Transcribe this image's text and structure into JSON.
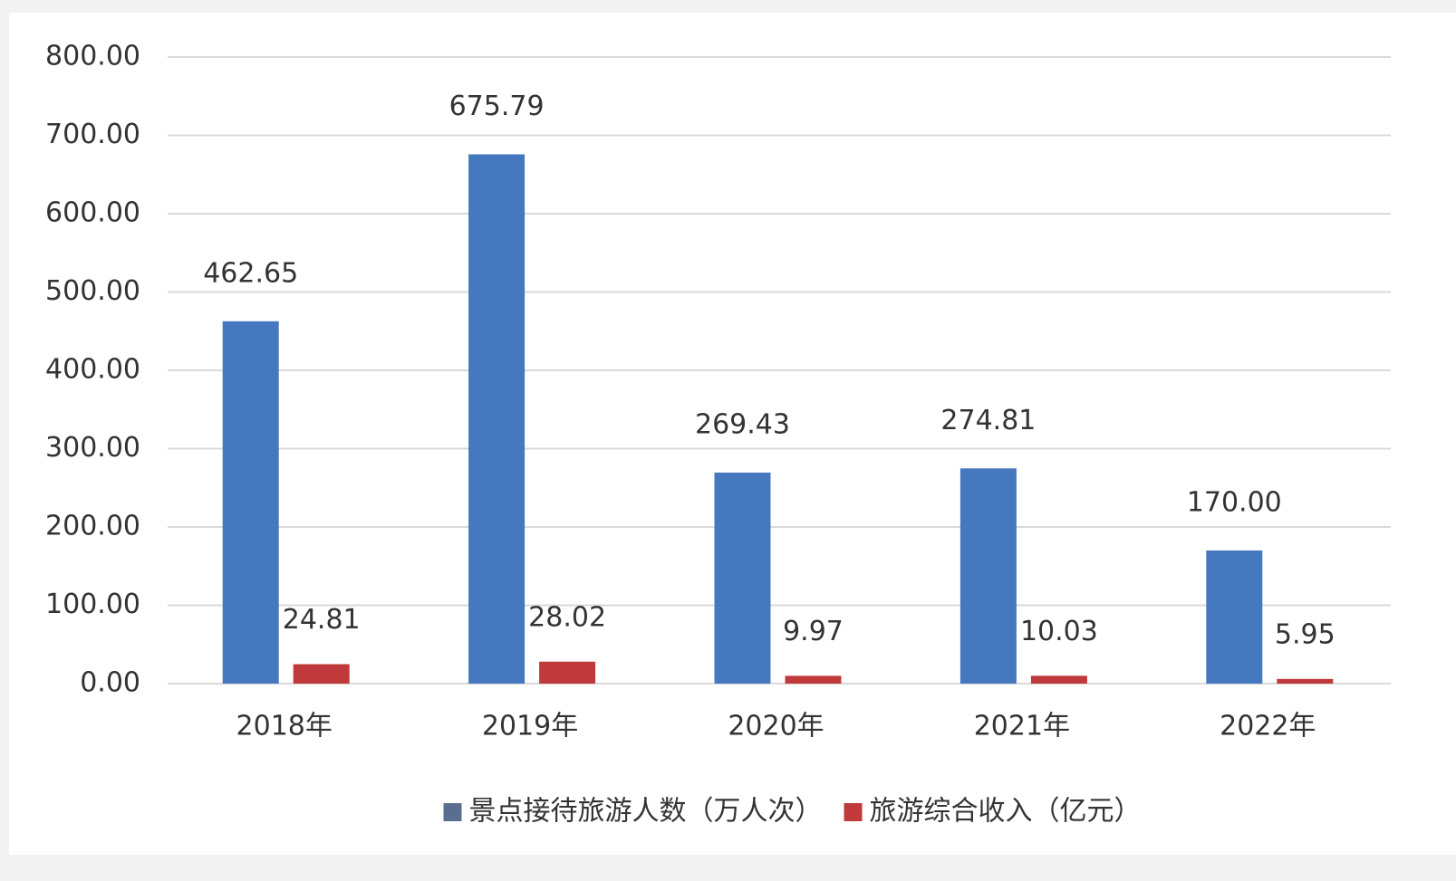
{
  "chart_data": {
    "type": "bar",
    "categories": [
      "2018年",
      "2019年",
      "2020年",
      "2021年",
      "2022年"
    ],
    "series": [
      {
        "name": "景点接待旅游人数（万人次）",
        "color": "#4678c0",
        "values": [
          462.65,
          675.79,
          269.43,
          274.81,
          170
        ],
        "value_labels": [
          "462.65",
          "675.79",
          "269.43",
          "274.81",
          "170.00"
        ]
      },
      {
        "name": "旅游综合收入（亿元）",
        "color": "#c0393b",
        "values": [
          24.81,
          28.02,
          9.97,
          10.03,
          5.95
        ],
        "value_labels": [
          "24.81",
          "28.02",
          "9.97",
          "10.03",
          "5.95"
        ]
      }
    ],
    "ylim": [
      0,
      800
    ],
    "yticks": [
      {
        "value": 0,
        "label": "0.00"
      },
      {
        "value": 100,
        "label": "100.00"
      },
      {
        "value": 200,
        "label": "200.00"
      },
      {
        "value": 300,
        "label": "300.00"
      },
      {
        "value": 400,
        "label": "400.00"
      },
      {
        "value": 500,
        "label": "500.00"
      },
      {
        "value": 600,
        "label": "600.00"
      },
      {
        "value": 700,
        "label": "700.00"
      },
      {
        "value": 800,
        "label": "800.00"
      }
    ],
    "grid": true,
    "legend": "bottom"
  }
}
